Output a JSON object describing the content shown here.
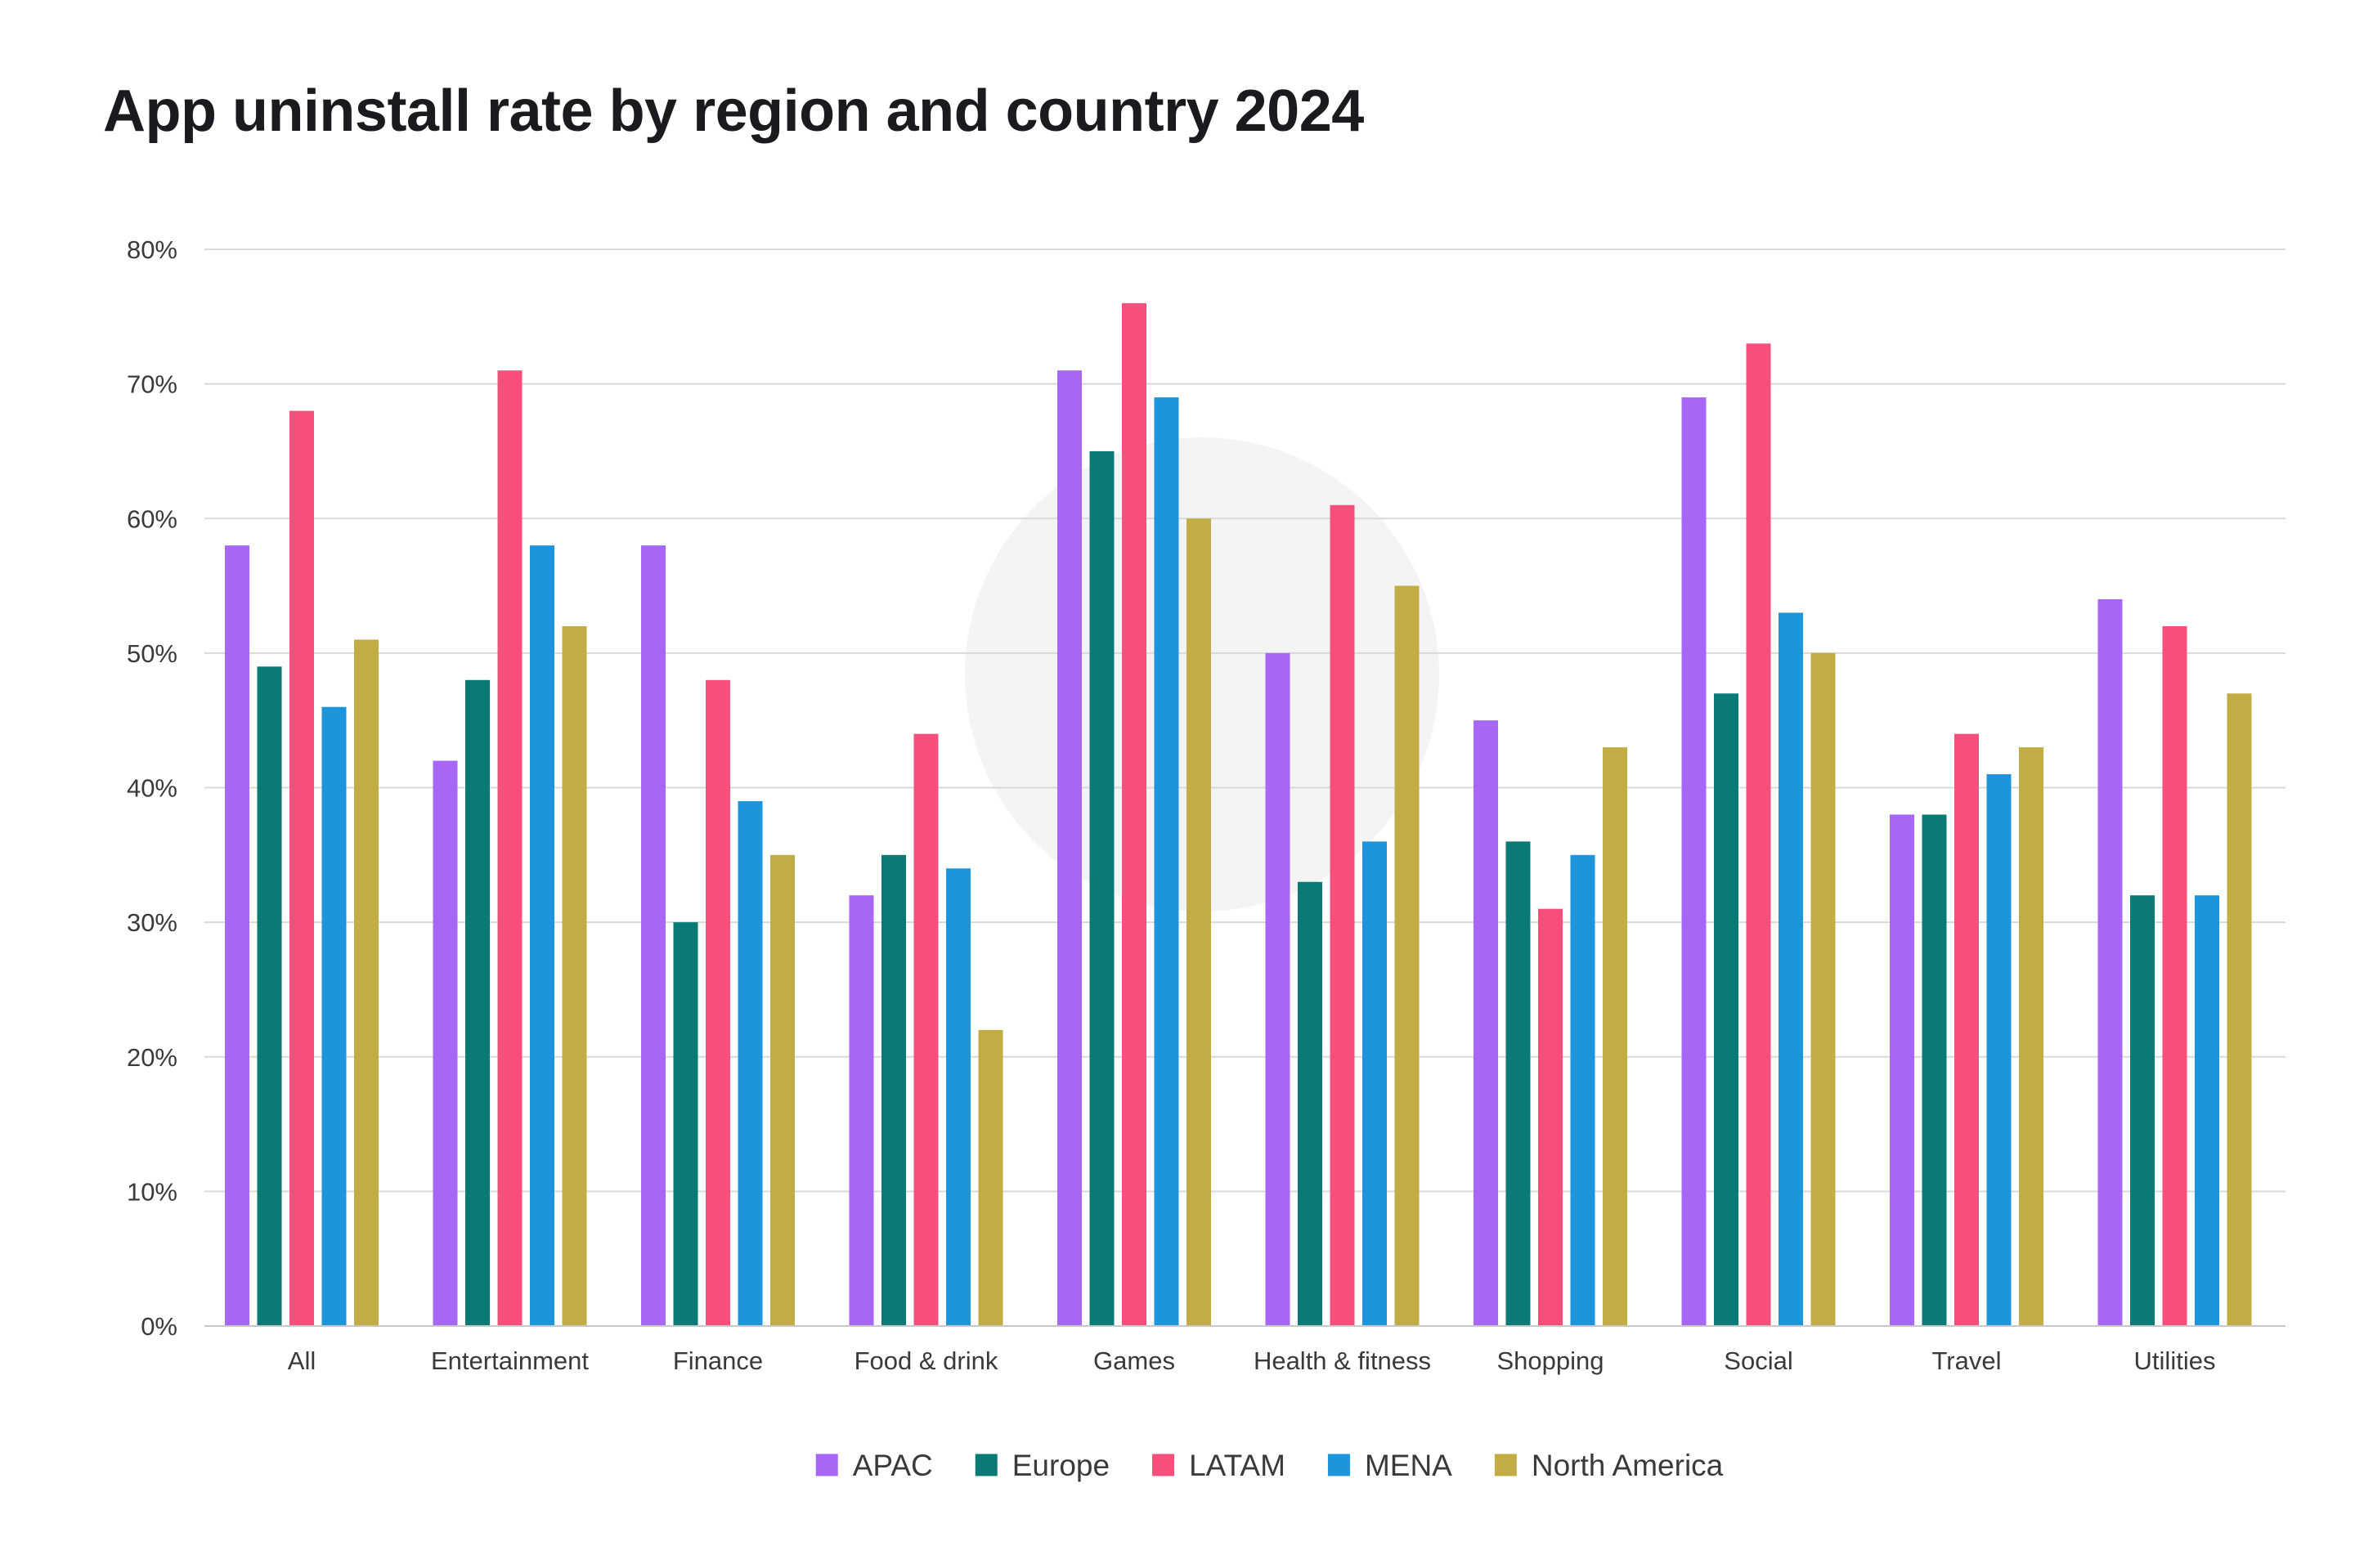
{
  "chart_data": {
    "type": "bar",
    "title": "App uninstall rate by region and country 2024",
    "xlabel": "",
    "ylabel": "",
    "ylim": [
      0,
      80
    ],
    "yticks": [
      0,
      10,
      20,
      30,
      40,
      50,
      60,
      70,
      80
    ],
    "y_tick_labels": [
      "0%",
      "10%",
      "20%",
      "30%",
      "40%",
      "50%",
      "60%",
      "70%",
      "80%"
    ],
    "grid": true,
    "legend_position": "bottom",
    "categories": [
      "All",
      "Entertainment",
      "Finance",
      "Food & drink",
      "Games",
      "Health & fitness",
      "Shopping",
      "Social",
      "Travel",
      "Utilities"
    ],
    "series": [
      {
        "name": "APAC",
        "color": "#a866f5",
        "values": [
          58,
          42,
          58,
          32,
          71,
          50,
          45,
          69,
          38,
          54
        ]
      },
      {
        "name": "Europe",
        "color": "#0a7a76",
        "values": [
          49,
          48,
          30,
          35,
          65,
          33,
          36,
          47,
          38,
          32
        ]
      },
      {
        "name": "LATAM",
        "color": "#f74f7c",
        "values": [
          68,
          71,
          48,
          44,
          76,
          61,
          31,
          73,
          44,
          52
        ]
      },
      {
        "name": "MENA",
        "color": "#1d95dd",
        "values": [
          46,
          58,
          39,
          34,
          69,
          36,
          35,
          53,
          41,
          32
        ]
      },
      {
        "name": "North America",
        "color": "#c2ad45",
        "values": [
          51,
          52,
          35,
          22,
          60,
          55,
          43,
          50,
          43,
          47
        ]
      }
    ]
  }
}
